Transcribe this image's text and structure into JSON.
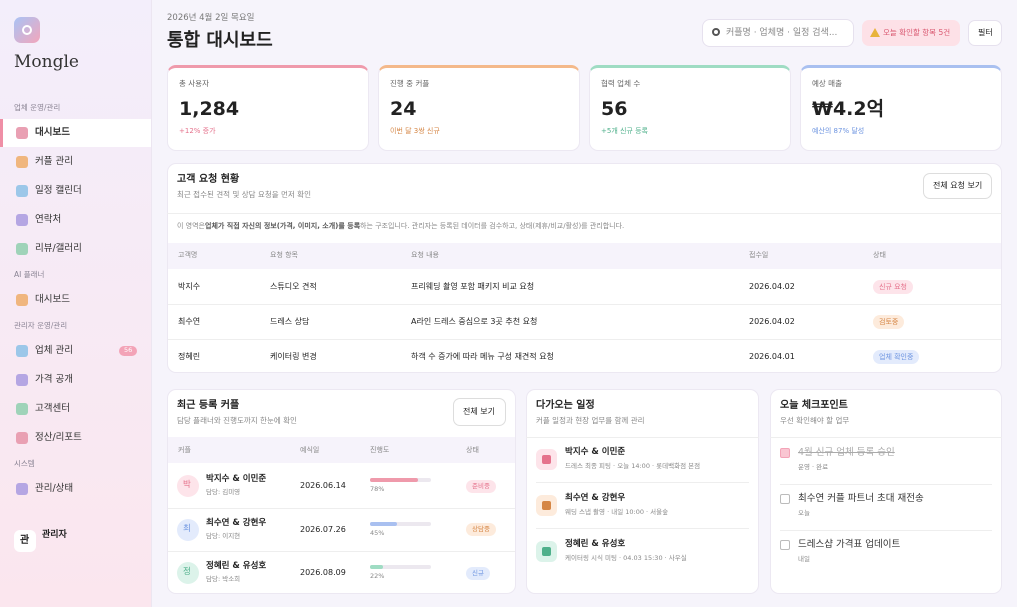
{
  "sidebar": {
    "brand": "Mongle",
    "sections": [
      {
        "title": "업체 운영/관리",
        "items": [
          {
            "label": "대시보드",
            "active": true
          },
          {
            "label": "커플 관리"
          },
          {
            "label": "일정 캘린더"
          },
          {
            "label": "연락처"
          },
          {
            "label": "리뷰/갤러리"
          }
        ]
      },
      {
        "title": "AI 플래너",
        "items": [
          {
            "label": "대시보드"
          }
        ]
      },
      {
        "title": "관리자 운영/관리",
        "items": [
          {
            "label": "업체 관리",
            "badge": 56
          },
          {
            "label": "가격 공개"
          },
          {
            "label": "고객센터"
          },
          {
            "label": "정산/리포트"
          }
        ]
      },
      {
        "title": "시스템",
        "items": [
          {
            "label": "관리/상태"
          }
        ]
      }
    ],
    "user": {
      "avatar": "관",
      "name": "관리자"
    }
  },
  "header": {
    "date": "2026년 4월 2일 목요일",
    "title": "통합 대시보드",
    "search": "커플명 · 업체명 · 일정 검색...",
    "alert": "오늘 확인할 항목 5건",
    "filter": "필터"
  },
  "stats": [
    {
      "label": "총 사용자",
      "value": "1,284",
      "note": "+12% 증가",
      "tone": "pink"
    },
    {
      "label": "진행 중 커플",
      "value": "24",
      "note": "이번 달 3쌍 신규",
      "tone": "peach"
    },
    {
      "label": "협력 업체 수",
      "value": "56",
      "note": "+5개 신규 등록",
      "tone": "mint"
    },
    {
      "label": "예상 매출",
      "value": "₩4.2억",
      "note": "예산의 87% 달성",
      "tone": "blue"
    }
  ],
  "requests": {
    "title": "고객 요청 현황",
    "subtitle": "최근 접수된 견적 및 상담 요청을 먼저 확인",
    "button": "전체 요청 보기",
    "notice": {
      "before": "이 영역은 ",
      "bold": "업체가 직접 자신의 정보(가격, 이미지, 소개)를 등록",
      "after": "하는 구조입니다. 관리자는 등록된 데이터를 검수하고, 상태(제휴/비교/활성)를 관리합니다."
    },
    "columns": [
      "고객명",
      "요청 항목",
      "요청 내용",
      "접수일",
      "상태"
    ],
    "rows": [
      {
        "name": "박지수",
        "item": "스튜디오 견적",
        "content": "프리웨딩 촬영 포함 패키지 비교 요청",
        "date": "2026.04.02",
        "status": "신규 요청",
        "tone": "pink"
      },
      {
        "name": "최수연",
        "item": "드레스 상담",
        "content": "A라인 드레스 중심으로 3곳 추천 요청",
        "date": "2026.04.02",
        "status": "검토중",
        "tone": "peach"
      },
      {
        "name": "정혜린",
        "item": "케이터링 변경",
        "content": "하객 수 증가에 따라 메뉴 구성 재견적 요청",
        "date": "2026.04.01",
        "status": "업체 확인중",
        "tone": "blue"
      }
    ]
  },
  "couples": {
    "title": "최근 등록 커플",
    "subtitle": "담당 플래너와 진행도까지 한눈에 확인",
    "button": "전체 보기",
    "columns": [
      "커플",
      "예식일",
      "진행도",
      "상태"
    ],
    "rows": [
      {
        "avatar": "박",
        "name": "박지수 & 이민준",
        "planner": "담당: 김미영",
        "date": "2026.06.14",
        "progress": {
          "value": 78,
          "label": "78%"
        },
        "status": "준비중",
        "tone": "pink"
      },
      {
        "avatar": "최",
        "name": "최수연 & 강현우",
        "planner": "담당: 이지현",
        "date": "2026.07.26",
        "progress": {
          "value": 45,
          "label": "45%"
        },
        "status": "상담중",
        "tone": "blue"
      },
      {
        "avatar": "정",
        "name": "정혜린 & 유성호",
        "planner": "담당: 박소희",
        "date": "2026.08.09",
        "progress": {
          "value": 22,
          "label": "22%"
        },
        "status": "신규",
        "tone": "mint"
      }
    ]
  },
  "schedule": {
    "title": "다가오는 일정",
    "subtitle": "커플 일정과 현장 업무를 함께 관리",
    "items": [
      {
        "name": "박지수 & 이민준",
        "detail": "드레스 최종 피팅 · 오늘 14:00 · 롯데백화점 본점",
        "tone": "pink"
      },
      {
        "name": "최수연 & 강현우",
        "detail": "웨딩 스냅 촬영 · 내일 10:00 · 서울숲",
        "tone": "peach"
      },
      {
        "name": "정혜린 & 유성호",
        "detail": "케이터링 시식 미팅 · 04.03 15:30 · 사우실",
        "tone": "mint"
      }
    ]
  },
  "checkpoints": {
    "title": "오늘 체크포인트",
    "subtitle": "우선 확인해야 할 업무",
    "items": [
      {
        "text": "4월 신규 업체 등록 승인",
        "sub": "운영 · 완료",
        "done": true
      },
      {
        "text": "최수연 커플 파트너 초대 재전송",
        "sub": "오늘",
        "done": false
      },
      {
        "text": "드레스샵 가격표 업데이트",
        "sub": "내일",
        "done": false
      }
    ]
  }
}
